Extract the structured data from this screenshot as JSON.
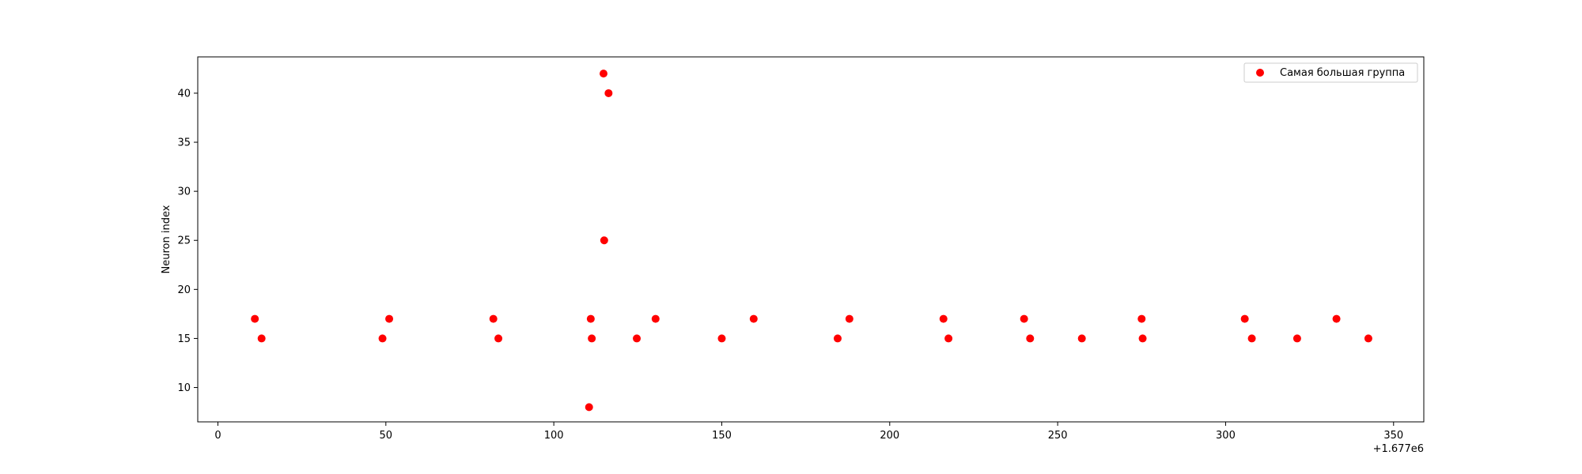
{
  "chart_data": {
    "type": "scatter",
    "title": "",
    "xlabel": "",
    "ylabel": "Neuron index",
    "x_offset_label": "+1.677e6",
    "x_offset": 1677000,
    "xlim": [
      1676994,
      1677359
    ],
    "ylim": [
      6.5,
      43.7
    ],
    "x_ticks": [
      0,
      50,
      100,
      150,
      200,
      250,
      300,
      350
    ],
    "y_ticks": [
      10,
      15,
      20,
      25,
      30,
      35,
      40
    ],
    "grid": false,
    "legend_position": "top-right",
    "series": [
      {
        "name": "Самая большая группа",
        "color": "#ff0000",
        "points": [
          [
            1677011,
            17
          ],
          [
            1677013,
            15
          ],
          [
            1677049,
            15
          ],
          [
            1677051,
            17
          ],
          [
            1677082,
            17
          ],
          [
            1677083.5,
            15
          ],
          [
            1677110.5,
            8
          ],
          [
            1677111,
            17
          ],
          [
            1677111.3,
            15
          ],
          [
            1677114.8,
            42
          ],
          [
            1677115,
            25
          ],
          [
            1677116.3,
            40
          ],
          [
            1677124.7,
            15
          ],
          [
            1677130.3,
            17
          ],
          [
            1677150,
            15
          ],
          [
            1677159.5,
            17
          ],
          [
            1677184.5,
            15
          ],
          [
            1677188,
            17
          ],
          [
            1677216,
            17
          ],
          [
            1677217.5,
            15
          ],
          [
            1677240,
            17
          ],
          [
            1677241.8,
            15
          ],
          [
            1677257.2,
            15
          ],
          [
            1677275,
            17
          ],
          [
            1677275.3,
            15
          ],
          [
            1677305.7,
            17
          ],
          [
            1677307.8,
            15
          ],
          [
            1677321.3,
            15
          ],
          [
            1677333,
            17
          ],
          [
            1677342.5,
            15
          ]
        ]
      }
    ]
  }
}
